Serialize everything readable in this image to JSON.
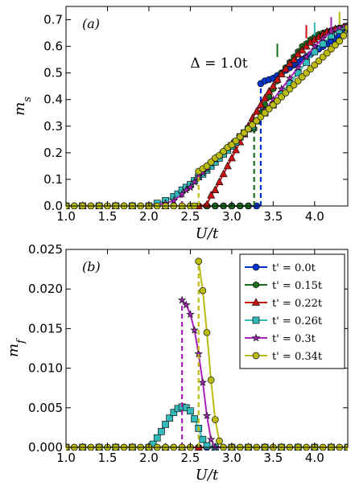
{
  "chart_data": [
    {
      "type": "line",
      "panel_label": "(a)",
      "xlabel": "U/t",
      "ylabel": "m_s",
      "xlim": [
        1.0,
        4.4
      ],
      "ylim": [
        0.0,
        0.75
      ],
      "xticks": [
        "1.0",
        "1.5",
        "2.0",
        "2.5",
        "3.0",
        "3.5",
        "4.0"
      ],
      "yticks": [
        "0.0",
        "0.1",
        "0.2",
        "0.3",
        "0.4",
        "0.5",
        "0.6",
        "0.7"
      ],
      "annotation": "Δ = 1.0t",
      "grid": false,
      "series": [
        {
          "name": "t' = 0.0t",
          "color": "#0033cc",
          "marker": "circle",
          "transition_x": 3.35,
          "x": [
            1.0,
            1.1,
            1.2,
            1.3,
            1.4,
            1.5,
            1.6,
            1.7,
            1.8,
            1.9,
            2.0,
            2.1,
            2.2,
            2.3,
            2.4,
            2.5,
            2.6,
            2.7,
            2.8,
            2.9,
            3.0,
            3.1,
            3.2,
            3.3,
            3.35,
            3.4,
            3.45,
            3.5,
            3.55,
            3.6,
            3.65,
            3.7,
            3.75,
            3.8,
            3.85,
            3.9,
            3.95,
            4.0,
            4.05,
            4.1,
            4.15,
            4.2,
            4.25,
            4.3,
            4.35,
            4.4
          ],
          "y": [
            0,
            0,
            0,
            0,
            0,
            0,
            0,
            0,
            0,
            0,
            0,
            0,
            0,
            0,
            0,
            0,
            0,
            0,
            0,
            0,
            0,
            0,
            0,
            0,
            0.46,
            0.47,
            0.475,
            0.48,
            0.49,
            0.5,
            0.51,
            0.52,
            0.53,
            0.54,
            0.55,
            0.56,
            0.57,
            0.58,
            0.59,
            0.6,
            0.61,
            0.62,
            0.63,
            0.64,
            0.655,
            0.665
          ]
        },
        {
          "name": "t' = 0.15t",
          "color": "#1a6e1a",
          "marker": "hexagon",
          "transition_x": 3.27,
          "x": [
            1.0,
            1.1,
            1.2,
            1.3,
            1.4,
            1.5,
            1.6,
            1.7,
            1.8,
            1.9,
            2.0,
            2.1,
            2.2,
            2.3,
            2.4,
            2.5,
            2.6,
            2.7,
            2.8,
            2.9,
            3.0,
            3.1,
            3.2,
            3.27,
            3.3,
            3.35,
            3.4,
            3.45,
            3.5,
            3.55,
            3.6,
            3.65,
            3.7,
            3.75,
            3.8,
            3.85,
            3.9,
            3.95,
            4.0,
            4.05,
            4.1,
            4.15,
            4.2,
            4.25,
            4.3,
            4.35,
            4.4
          ],
          "y": [
            0,
            0,
            0,
            0,
            0,
            0,
            0,
            0,
            0,
            0,
            0,
            0,
            0,
            0,
            0,
            0,
            0,
            0,
            0,
            0,
            0,
            0,
            0,
            0.29,
            0.32,
            0.35,
            0.38,
            0.41,
            0.44,
            0.47,
            0.5,
            0.52,
            0.54,
            0.56,
            0.58,
            0.6,
            0.61,
            0.625,
            0.635,
            0.645,
            0.65,
            0.655,
            0.66,
            0.665,
            0.67,
            0.672,
            0.675
          ]
        },
        {
          "name": "t' = 0.22t",
          "color": "#cc1111",
          "marker": "triangle",
          "transition_x": 2.72,
          "x": [
            1.0,
            1.2,
            1.4,
            1.6,
            1.8,
            2.0,
            2.2,
            2.4,
            2.6,
            2.7,
            2.75,
            2.8,
            2.85,
            2.9,
            2.95,
            3.0,
            3.05,
            3.1,
            3.15,
            3.2,
            3.25,
            3.3,
            3.35,
            3.4,
            3.45,
            3.5,
            3.55,
            3.6,
            3.65,
            3.7,
            3.75,
            3.8,
            3.85,
            3.9,
            3.95,
            4.0,
            4.05,
            4.1,
            4.15,
            4.2,
            4.25,
            4.3,
            4.35,
            4.4
          ],
          "y": [
            0,
            0,
            0,
            0,
            0,
            0,
            0,
            0,
            0,
            0.005,
            0.04,
            0.06,
            0.09,
            0.12,
            0.15,
            0.18,
            0.21,
            0.24,
            0.27,
            0.3,
            0.33,
            0.355,
            0.38,
            0.405,
            0.43,
            0.45,
            0.475,
            0.495,
            0.515,
            0.535,
            0.55,
            0.57,
            0.585,
            0.6,
            0.615,
            0.625,
            0.635,
            0.645,
            0.655,
            0.66,
            0.665,
            0.67,
            0.672,
            0.675
          ]
        },
        {
          "name": "t' = 0.26t",
          "color": "#33bbbb",
          "marker": "square",
          "transition_x": 2.0,
          "x": [
            1.0,
            1.2,
            1.4,
            1.6,
            1.8,
            2.0,
            2.1,
            2.2,
            2.3,
            2.35,
            2.4,
            2.45,
            2.5,
            2.55,
            2.6,
            2.65,
            2.7,
            2.75,
            2.8,
            2.85,
            2.9,
            2.95,
            3.0,
            3.05,
            3.1,
            3.15,
            3.2,
            3.25,
            3.3,
            3.4,
            3.5,
            3.6,
            3.7,
            3.8,
            3.9,
            4.0,
            4.1,
            4.2,
            4.3,
            4.4
          ],
          "y": [
            0,
            0,
            0,
            0,
            0,
            0,
            0.01,
            0.02,
            0.035,
            0.045,
            0.06,
            0.07,
            0.08,
            0.095,
            0.11,
            0.12,
            0.135,
            0.15,
            0.165,
            0.18,
            0.195,
            0.21,
            0.225,
            0.24,
            0.26,
            0.275,
            0.29,
            0.3,
            0.32,
            0.35,
            0.38,
            0.42,
            0.46,
            0.5,
            0.54,
            0.58,
            0.61,
            0.64,
            0.66,
            0.675
          ]
        },
        {
          "name": "t' = 0.3t",
          "color": "#aa22bb",
          "marker": "star",
          "transition_x": 2.4,
          "x": [
            1.0,
            1.2,
            1.4,
            1.6,
            1.8,
            2.0,
            2.2,
            2.3,
            2.4,
            2.45,
            2.5,
            2.55,
            2.6,
            2.65,
            2.7,
            2.75,
            2.8,
            2.85,
            2.9,
            2.95,
            3.0,
            3.1,
            3.2,
            3.3,
            3.4,
            3.5,
            3.6,
            3.7,
            3.8,
            3.9,
            4.0,
            4.1,
            4.2,
            4.3,
            4.4
          ],
          "y": [
            0,
            0,
            0,
            0,
            0,
            0,
            0.01,
            0.02,
            0.045,
            0.06,
            0.07,
            0.09,
            0.11,
            0.125,
            0.14,
            0.16,
            0.175,
            0.19,
            0.205,
            0.22,
            0.235,
            0.26,
            0.29,
            0.32,
            0.36,
            0.4,
            0.44,
            0.48,
            0.52,
            0.56,
            0.6,
            0.63,
            0.655,
            0.67,
            0.68
          ]
        },
        {
          "name": "t' = 0.34t",
          "color": "#bbbb11",
          "marker": "circle",
          "transition_x": 2.6,
          "x": [
            1.0,
            1.1,
            1.2,
            1.3,
            1.4,
            1.5,
            1.6,
            1.7,
            1.8,
            1.9,
            2.0,
            2.1,
            2.2,
            2.3,
            2.4,
            2.5,
            2.55,
            2.6,
            2.65,
            2.7,
            2.75,
            2.8,
            2.85,
            2.9,
            2.95,
            3.0,
            3.05,
            3.1,
            3.15,
            3.2,
            3.25,
            3.3,
            3.35,
            3.4,
            3.45,
            3.5,
            3.55,
            3.6,
            3.65,
            3.7,
            3.75,
            3.8,
            3.85,
            3.9,
            3.95,
            4.0,
            4.05,
            4.1,
            4.15,
            4.2,
            4.25,
            4.3,
            4.35,
            4.4
          ],
          "y": [
            0,
            0,
            0,
            0,
            0,
            0,
            0,
            0,
            0,
            0,
            0,
            0,
            0,
            0,
            0,
            0,
            0,
            0.13,
            0.14,
            0.15,
            0.165,
            0.18,
            0.19,
            0.205,
            0.22,
            0.23,
            0.245,
            0.26,
            0.275,
            0.29,
            0.305,
            0.32,
            0.335,
            0.35,
            0.365,
            0.38,
            0.395,
            0.41,
            0.425,
            0.44,
            0.455,
            0.47,
            0.485,
            0.5,
            0.515,
            0.53,
            0.545,
            0.56,
            0.575,
            0.59,
            0.605,
            0.62,
            0.64,
            0.67
          ]
        }
      ],
      "end_ticks": [
        {
          "x": 3.55,
          "color": "#1a6e1a",
          "y0": 0.56,
          "y1": 0.61
        },
        {
          "x": 3.9,
          "color": "#cc1111",
          "y0": 0.63,
          "y1": 0.68
        },
        {
          "x": 4.0,
          "color": "#33bbbb",
          "y0": 0.64,
          "y1": 0.69
        },
        {
          "x": 4.2,
          "color": "#aa22bb",
          "y0": 0.66,
          "y1": 0.71
        },
        {
          "x": 4.3,
          "color": "#bbbb11",
          "y0": 0.68,
          "y1": 0.73
        }
      ]
    },
    {
      "type": "line",
      "panel_label": "(b)",
      "xlabel": "U/t",
      "ylabel": "m_f",
      "xlim": [
        1.0,
        4.4
      ],
      "ylim": [
        0.0,
        0.025
      ],
      "xticks": [
        "1.0",
        "1.5",
        "2.0",
        "2.5",
        "3.0",
        "3.5",
        "4.0"
      ],
      "yticks": [
        "0.000",
        "0.005",
        "0.010",
        "0.015",
        "0.020",
        "0.025"
      ],
      "legend": "top-right",
      "grid": false,
      "series": [
        {
          "name": "t' = 0.0t",
          "color": "#0033cc",
          "marker": "circle",
          "x": [
            1.0,
            1.1,
            1.2,
            1.3,
            1.4,
            1.5,
            1.6,
            1.7,
            1.8,
            1.9,
            2.0,
            2.1,
            2.2,
            2.3,
            2.4,
            2.5,
            2.6,
            2.7,
            2.8,
            2.9,
            3.0,
            3.1,
            3.2,
            3.3,
            3.4,
            3.5,
            3.6,
            3.7,
            3.8,
            3.9,
            4.0,
            4.1,
            4.2,
            4.3,
            4.4
          ],
          "y": [
            0,
            0,
            0,
            0,
            0,
            0,
            0,
            0,
            0,
            0,
            0,
            0,
            0,
            0,
            0,
            0,
            0,
            0,
            0,
            0,
            0,
            0,
            0,
            0,
            0,
            0,
            0,
            0,
            0,
            0,
            0,
            0,
            0,
            0,
            0
          ]
        },
        {
          "name": "t' = 0.15t",
          "color": "#1a6e1a",
          "marker": "hexagon",
          "x": [
            1.0,
            1.2,
            1.4,
            1.6,
            1.8,
            2.0,
            2.2,
            2.4,
            2.6,
            2.8,
            3.0,
            3.2,
            3.4,
            3.6,
            3.8,
            4.0,
            4.2,
            4.4
          ],
          "y": [
            0,
            0,
            0,
            0,
            0,
            0,
            0,
            0,
            0,
            0,
            0,
            0,
            0,
            0,
            0,
            0,
            0,
            0
          ]
        },
        {
          "name": "t' = 0.22t",
          "color": "#cc1111",
          "marker": "triangle",
          "x": [
            1.0,
            1.2,
            1.4,
            1.6,
            1.8,
            2.0,
            2.2,
            2.4,
            2.6,
            2.8,
            3.0,
            3.2,
            3.4,
            3.6,
            3.8,
            4.0,
            4.2,
            4.4
          ],
          "y": [
            0,
            0,
            0,
            0,
            0,
            0,
            0,
            0,
            0,
            0,
            0,
            0,
            0,
            0,
            0,
            0,
            0,
            0
          ]
        },
        {
          "name": "t' = 0.26t",
          "color": "#33bbbb",
          "marker": "square",
          "transition_x": 2.0,
          "x": [
            1.0,
            1.2,
            1.4,
            1.6,
            1.8,
            2.0,
            2.05,
            2.1,
            2.15,
            2.2,
            2.25,
            2.3,
            2.35,
            2.4,
            2.45,
            2.5,
            2.55,
            2.6,
            2.65,
            2.7,
            2.8,
            3.0,
            3.2,
            3.4,
            3.6,
            3.8,
            4.0,
            4.2,
            4.4
          ],
          "y": [
            0,
            0,
            0,
            0,
            0,
            0,
            0.0004,
            0.0012,
            0.002,
            0.0029,
            0.0037,
            0.0044,
            0.0049,
            0.0051,
            0.005,
            0.0046,
            0.0036,
            0.0024,
            0.001,
            0.0002,
            0,
            0,
            0,
            0,
            0,
            0,
            0,
            0,
            0
          ]
        },
        {
          "name": "t' = 0.3t",
          "color": "#aa22bb",
          "marker": "star",
          "transition_x": 2.4,
          "x": [
            1.0,
            1.2,
            1.4,
            1.6,
            1.8,
            2.0,
            2.2,
            2.4,
            2.45,
            2.5,
            2.55,
            2.6,
            2.65,
            2.7,
            2.75,
            2.8,
            3.0,
            3.2,
            3.4,
            3.6,
            3.8,
            4.0,
            4.2,
            4.4
          ],
          "y": [
            0,
            0,
            0,
            0,
            0,
            0,
            0,
            0.0186,
            0.018,
            0.0168,
            0.0148,
            0.0118,
            0.0082,
            0.004,
            0.001,
            0,
            0,
            0,
            0,
            0,
            0,
            0,
            0,
            0
          ]
        },
        {
          "name": "t' = 0.34t",
          "color": "#bbbb11",
          "marker": "circle",
          "transition_x": 2.6,
          "x": [
            1.0,
            1.1,
            1.2,
            1.3,
            1.4,
            1.5,
            1.6,
            1.7,
            1.8,
            1.9,
            2.0,
            2.1,
            2.2,
            2.3,
            2.4,
            2.5,
            2.6,
            2.65,
            2.7,
            2.75,
            2.8,
            2.85,
            2.9,
            3.0,
            3.1,
            3.2,
            3.3,
            3.4,
            3.5,
            3.6,
            3.7,
            3.8,
            3.9,
            4.0,
            4.1,
            4.2,
            4.3,
            4.4
          ],
          "y": [
            0,
            0,
            0,
            0,
            0,
            0,
            0,
            0,
            0,
            0,
            0,
            0,
            0,
            0,
            0,
            0,
            0.0235,
            0.0198,
            0.0145,
            0.0085,
            0.0035,
            0.0008,
            0,
            0,
            0,
            0,
            0,
            0,
            0,
            0,
            0,
            0,
            0,
            0,
            0,
            0,
            0,
            0
          ]
        }
      ]
    }
  ]
}
